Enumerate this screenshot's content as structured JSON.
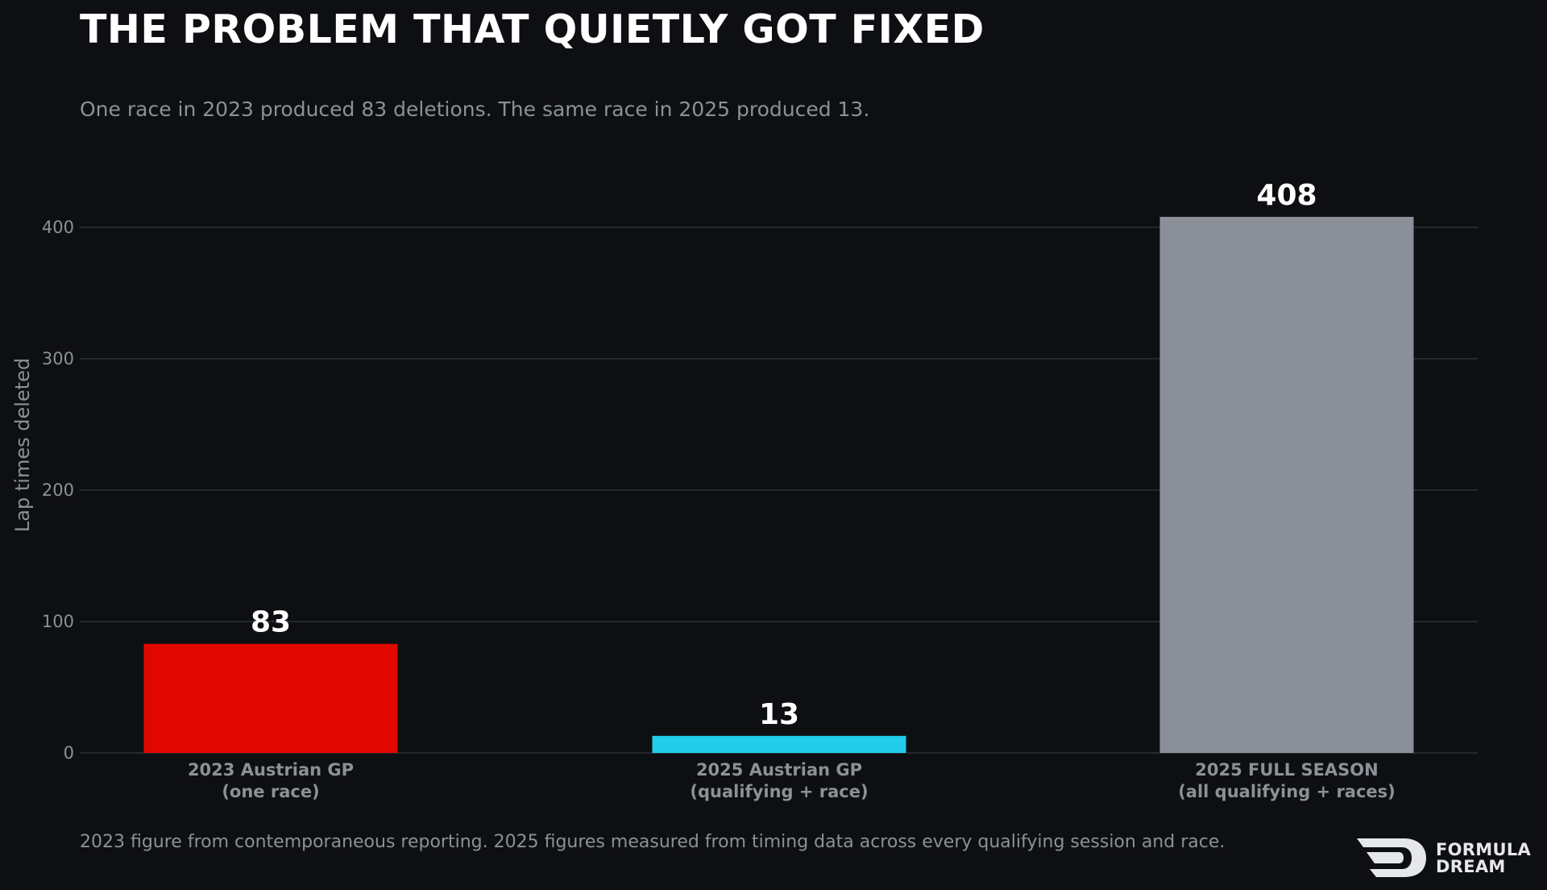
{
  "header": {
    "title": "THE PROBLEM THAT QUIETLY GOT FIXED",
    "subtitle": "One race in 2023 produced 83 deletions. The same race in 2025 produced 13."
  },
  "footer": {
    "note": "2023 figure from contemporaneous reporting. 2025 figures measured from timing data across every qualifying session and race.",
    "logo_line1": "FORMULA",
    "logo_line2": "DREAM"
  },
  "chart_data": {
    "type": "bar",
    "title": "THE PROBLEM THAT QUIETLY GOT FIXED",
    "subtitle": "One race in 2023 produced 83 deletions. The same race in 2025 produced 13.",
    "xlabel": "",
    "ylabel": "Lap times deleted",
    "ylim": [
      0,
      435
    ],
    "yticks": [
      0,
      100,
      200,
      300,
      400
    ],
    "grid": "horizontal",
    "legend": "none",
    "categories": [
      [
        "2023 Austrian GP",
        "(one race)"
      ],
      [
        "2025 Austrian GP",
        "(qualifying + race)"
      ],
      [
        "2025 FULL SEASON",
        "(all qualifying + races)"
      ]
    ],
    "values": [
      83,
      13,
      408
    ],
    "value_labels": [
      "83",
      "13",
      "408"
    ],
    "colors": [
      "#e00700",
      "#22cceb",
      "#8b8f97"
    ]
  },
  "colors": {
    "background": "#0e0f12",
    "grid": "#26282d",
    "text_muted": "#8d9096",
    "text_primary": "#ffffff"
  }
}
